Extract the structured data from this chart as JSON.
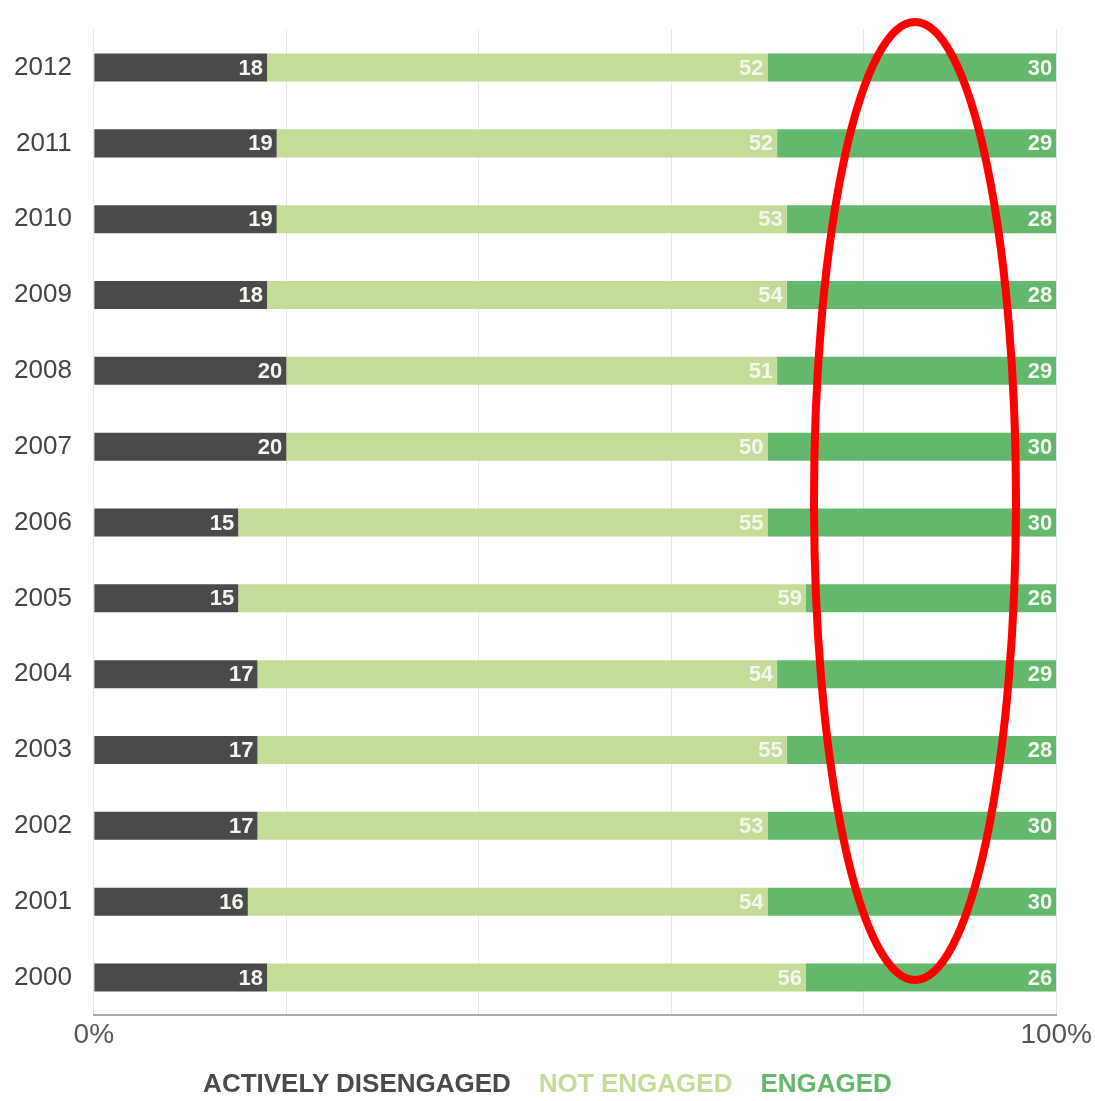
{
  "chart_data": {
    "type": "bar",
    "orientation": "horizontal",
    "stacked": true,
    "categories": [
      "2012",
      "2011",
      "2010",
      "2009",
      "2008",
      "2007",
      "2006",
      "2005",
      "2004",
      "2003",
      "2002",
      "2001",
      "2000"
    ],
    "series": [
      {
        "name": "ACTIVELY DISENGAGED",
        "color": "#4a4a4a",
        "values": [
          18,
          19,
          19,
          18,
          20,
          20,
          15,
          15,
          17,
          17,
          17,
          16,
          18
        ]
      },
      {
        "name": "NOT ENGAGED",
        "color": "#c3dc98",
        "values": [
          52,
          52,
          53,
          54,
          51,
          50,
          55,
          59,
          54,
          55,
          53,
          54,
          56
        ]
      },
      {
        "name": "ENGAGED",
        "color": "#64b86c",
        "values": [
          30,
          29,
          28,
          28,
          29,
          30,
          30,
          26,
          29,
          28,
          30,
          30,
          26
        ]
      }
    ],
    "xlim": [
      0,
      100
    ],
    "xticks": [
      {
        "value": 0,
        "label": "0%"
      },
      {
        "value": 20,
        "label": null
      },
      {
        "value": 40,
        "label": null
      },
      {
        "value": 60,
        "label": null
      },
      {
        "value": 80,
        "label": null
      },
      {
        "value": 100,
        "label": "100%"
      }
    ],
    "grid": "x",
    "legend": "bottom",
    "data_labels": true
  }
}
